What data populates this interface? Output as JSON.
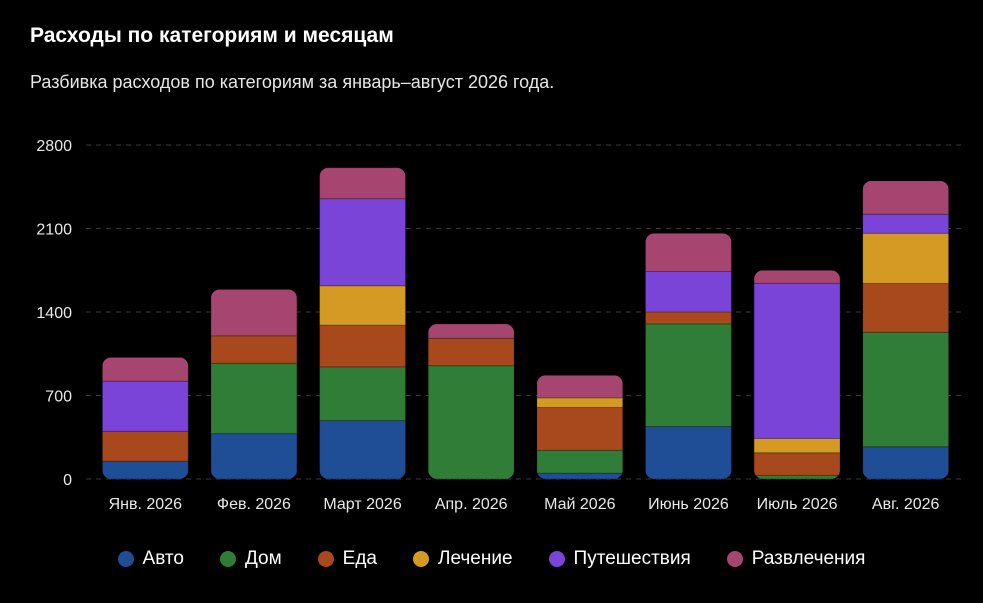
{
  "chart_data": {
    "type": "bar",
    "stacked": true,
    "title": "Расходы по категориям и месяцам",
    "subtitle": "Разбивка расходов по категориям за январь–август 2026 года.",
    "categories": [
      "Янв. 2026",
      "Фев. 2026",
      "Март 2026",
      "Апр. 2026",
      "Май 2026",
      "Июнь 2026",
      "Июль 2026",
      "Авг. 2026"
    ],
    "series": [
      {
        "name": "Авто",
        "color": "#1f4e96",
        "values": [
          150,
          380,
          490,
          0,
          50,
          440,
          0,
          270
        ]
      },
      {
        "name": "Дом",
        "color": "#2f7d37",
        "values": [
          0,
          590,
          450,
          950,
          190,
          860,
          30,
          960
        ]
      },
      {
        "name": "Еда",
        "color": "#a8481d",
        "values": [
          250,
          230,
          350,
          230,
          360,
          100,
          190,
          410
        ]
      },
      {
        "name": "Лечение",
        "color": "#d49a24",
        "values": [
          0,
          0,
          330,
          0,
          80,
          0,
          120,
          420
        ]
      },
      {
        "name": "Путешествия",
        "color": "#7a44d8",
        "values": [
          420,
          0,
          730,
          0,
          0,
          340,
          1300,
          160
        ]
      },
      {
        "name": "Развлечения",
        "color": "#a6456f",
        "values": [
          200,
          390,
          260,
          120,
          190,
          320,
          110,
          280
        ]
      }
    ],
    "yticks": [
      0,
      700,
      1400,
      2100,
      2800
    ],
    "ylim": [
      0,
      2800
    ],
    "grid": true,
    "legend_position": "bottom"
  }
}
